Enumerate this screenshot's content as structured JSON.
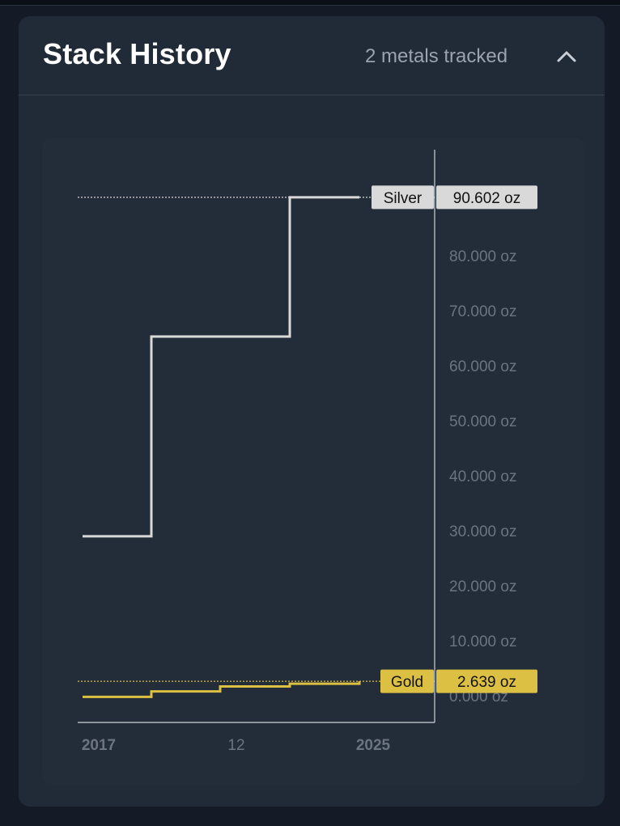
{
  "card": {
    "title": "Stack History",
    "subtitle": "2 metals tracked",
    "collapse_icon": "chevron-up-icon"
  },
  "colors": {
    "silver": "#d9d9d9",
    "gold": "#dcc044",
    "axis": "#cfd3d8",
    "tick_text": "#6b7480"
  },
  "chart_data": {
    "type": "line",
    "step": true,
    "x_ticks": [
      {
        "label": "2017",
        "bold": true
      },
      {
        "label": "12",
        "bold": false
      },
      {
        "label": "2025",
        "bold": true
      }
    ],
    "y_ticks": [
      "0.000 oz",
      "10.000 oz",
      "20.000 oz",
      "30.000 oz",
      "40.000 oz",
      "50.000 oz",
      "60.000 oz",
      "70.000 oz",
      "80.000 oz"
    ],
    "ylim": [
      -4.7,
      100
    ],
    "series": [
      {
        "name": "Silver",
        "color": "#d9d9d9",
        "last_value_label": "90.602 oz",
        "points": [
          {
            "x": 0,
            "y": 29.0
          },
          {
            "x": 1,
            "y": 29.0
          },
          {
            "x": 1,
            "y": 65.3
          },
          {
            "x": 3,
            "y": 65.3
          },
          {
            "x": 3,
            "y": 90.602
          },
          {
            "x": 4,
            "y": 90.602
          }
        ]
      },
      {
        "name": "Gold",
        "color": "#dcc044",
        "last_value_label": "2.639 oz",
        "points": [
          {
            "x": 0,
            "y": -0.2
          },
          {
            "x": 1,
            "y": -0.2
          },
          {
            "x": 1,
            "y": 0.8
          },
          {
            "x": 2,
            "y": 0.8
          },
          {
            "x": 2,
            "y": 1.7
          },
          {
            "x": 3,
            "y": 1.7
          },
          {
            "x": 3,
            "y": 2.2
          },
          {
            "x": 4,
            "y": 2.2
          },
          {
            "x": 4,
            "y": 2.639
          }
        ]
      }
    ]
  }
}
